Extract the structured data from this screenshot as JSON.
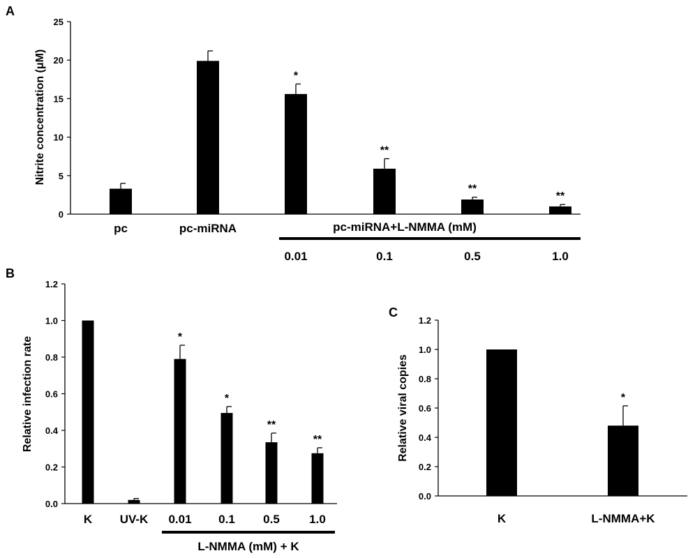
{
  "chart_data": [
    {
      "panel": "A",
      "type": "bar",
      "ylabel": "Nitrite concentration (μM)",
      "ylim": [
        0,
        25
      ],
      "yticks": [
        "0",
        "5",
        "10",
        "15",
        "20",
        "25"
      ],
      "categories": [
        "pc",
        "pc-miRNA",
        "0.01",
        "0.1",
        "0.5",
        "1.0"
      ],
      "values": [
        3.3,
        19.9,
        15.6,
        5.9,
        1.9,
        1.0
      ],
      "errors": [
        0.7,
        1.3,
        1.3,
        1.3,
        0.3,
        0.25
      ],
      "significance": [
        "",
        "",
        "*",
        "**",
        "**",
        "**"
      ],
      "group_label": "pc-miRNA+L-NMMA (mM)",
      "bar_color": "#000000"
    },
    {
      "panel": "B",
      "type": "bar",
      "ylabel": "Relative infection rate",
      "ylim": [
        0,
        1.2
      ],
      "yticks": [
        "0.0",
        "0.2",
        "0.4",
        "0.6",
        "0.8",
        "1.0",
        "1.2"
      ],
      "categories": [
        "K",
        "UV-K",
        "0.01",
        "0.1",
        "0.5",
        "1.0"
      ],
      "values": [
        1.0,
        0.02,
        0.79,
        0.495,
        0.335,
        0.275
      ],
      "errors": [
        0,
        0.008,
        0.075,
        0.035,
        0.05,
        0.03
      ],
      "significance": [
        "",
        "",
        "*",
        "*",
        "**",
        "**"
      ],
      "group_label": "L-NMMA (mM) + K",
      "bar_color": "#000000"
    },
    {
      "panel": "C",
      "type": "bar",
      "ylabel": "Relative viral copies",
      "ylim": [
        0,
        1.2
      ],
      "yticks": [
        "0.0",
        "0.2",
        "0.4",
        "0.6",
        "0.8",
        "1.0",
        "1.2"
      ],
      "categories": [
        "K",
        "L-NMMA+K"
      ],
      "values": [
        1.0,
        0.48
      ],
      "errors": [
        0,
        0.135
      ],
      "significance": [
        "",
        "*"
      ],
      "bar_color": "#000000"
    }
  ]
}
